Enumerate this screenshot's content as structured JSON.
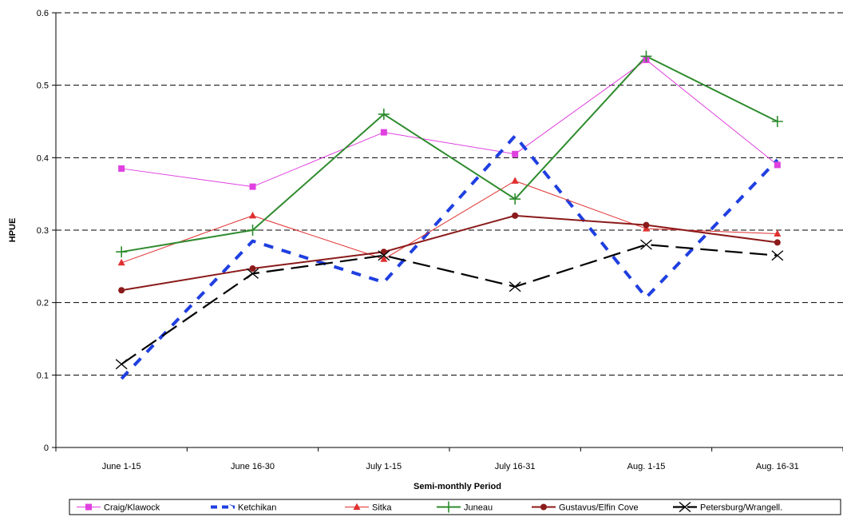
{
  "chart_data": {
    "type": "line",
    "title": "",
    "xlabel": "Semi-monthly Period",
    "ylabel": "HPUE",
    "categories": [
      "June 1-15",
      "June 16-30",
      "July 1-15",
      "July 16-31",
      "Aug. 1-15",
      "Aug. 16-31"
    ],
    "ylim": [
      0,
      0.6
    ],
    "yticks": [
      "0",
      "0.1",
      "0.2",
      "0.3",
      "0.4",
      "0.5",
      "0.6"
    ],
    "grid": "horizontal dashed",
    "legend_position": "bottom",
    "series": [
      {
        "name": "Craig/Klawock",
        "values": [
          0.385,
          0.36,
          0.435,
          0.405,
          0.535,
          0.39
        ],
        "color": "#e040e0",
        "marker": "square",
        "dash": "solid"
      },
      {
        "name": "Ketchikan",
        "values": [
          0.095,
          0.285,
          0.228,
          0.43,
          0.207,
          0.397
        ],
        "color": "#1f3fe0",
        "marker": "none",
        "dash": "dashed"
      },
      {
        "name": "Sitka",
        "values": [
          0.255,
          0.32,
          0.26,
          0.368,
          0.302,
          0.295
        ],
        "color": "#e03030",
        "marker": "triangle",
        "dash": "solid"
      },
      {
        "name": "Juneau",
        "values": [
          0.27,
          0.3,
          0.46,
          0.343,
          0.54,
          0.45
        ],
        "color": "#2e8b2e",
        "marker": "plus",
        "dash": "solid"
      },
      {
        "name": "Gustavus/Elfin Cove",
        "values": [
          0.217,
          0.247,
          0.27,
          0.32,
          0.307,
          0.283
        ],
        "color": "#8b1a1a",
        "marker": "circle",
        "dash": "solid"
      },
      {
        "name": "Petersburg/Wrangell.",
        "values": [
          0.115,
          0.24,
          0.265,
          0.222,
          0.28,
          0.265
        ],
        "color": "#000000",
        "marker": "x",
        "dash": "longdash"
      }
    ]
  }
}
